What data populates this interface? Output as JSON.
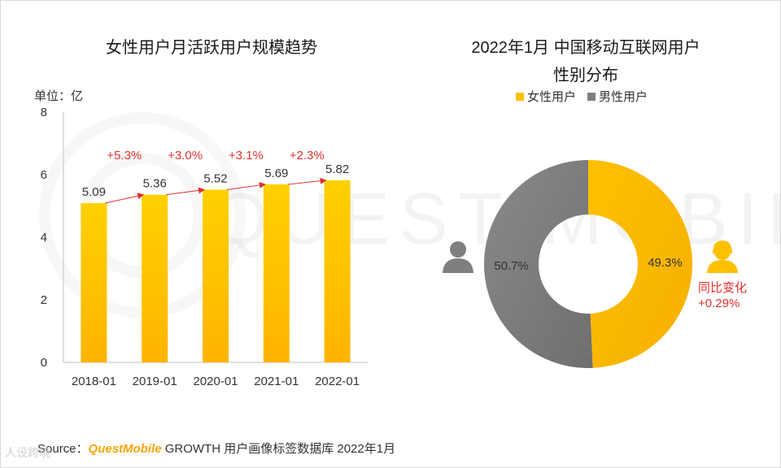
{
  "left_chart": {
    "title": "女性用户月活跃用户规模趋势",
    "unit": "单位：亿"
  },
  "right_chart": {
    "title_line1": "2022年1月 中国移动互联网用户",
    "title_line2": "性别分布",
    "legend": [
      "女性用户",
      "男性用户"
    ],
    "change_label": "同比变化",
    "change_value": "+0.29%"
  },
  "source": {
    "prefix": "Source：",
    "brand": "QuestMobile",
    "suffix": " GROWTH 用户画像标签数据库 2022年1月"
  },
  "watermark_text": "QUEST MOBILE",
  "footer_logo_text": "人设跨境",
  "colors": {
    "yellow": "#ffc000",
    "yellow_dark": "#f5a500",
    "gray": "#7f7f7f",
    "red": "#e03030"
  },
  "chart_data": [
    {
      "type": "bar",
      "title": "女性用户月活跃用户规模趋势",
      "ylabel": "单位：亿",
      "categories": [
        "2018-01",
        "2019-01",
        "2020-01",
        "2021-01",
        "2022-01"
      ],
      "values": [
        5.09,
        5.36,
        5.52,
        5.69,
        5.82
      ],
      "value_labels": [
        "5.09",
        "5.36",
        "5.52",
        "5.69",
        "5.82"
      ],
      "growth_labels": [
        "+5.3%",
        "+3.0%",
        "+3.1%",
        "+2.3%"
      ],
      "ylim": [
        0,
        8
      ],
      "yticks": [
        0,
        2,
        4,
        6,
        8
      ]
    },
    {
      "type": "pie",
      "title": "2022年1月 中国移动互联网用户性别分布",
      "labels": [
        "女性用户",
        "男性用户"
      ],
      "values": [
        49.3,
        50.7
      ],
      "value_labels": [
        "49.3%",
        "50.7%"
      ]
    }
  ]
}
